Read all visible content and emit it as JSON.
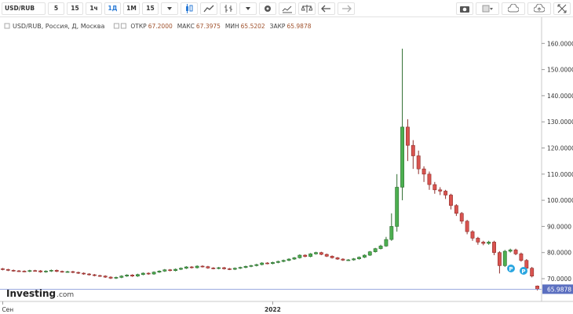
{
  "toolbar": {
    "symbol": "USD/RUB",
    "intervals": [
      "5",
      "15",
      "1ч",
      "1Д",
      "1М",
      "15"
    ],
    "active_interval": 3
  },
  "chart_data": {
    "type": "candlestick",
    "title": "USD/RUB, Россия, Д, Москва",
    "ohlc_labels": [
      {
        "name": "ОТКР",
        "text": "67.2000"
      },
      {
        "name": "МАКС",
        "text": "67.3975"
      },
      {
        "name": "МИН",
        "text": "65.5202"
      },
      {
        "name": "ЗАКР",
        "text": "65.9878"
      }
    ],
    "categories": [
      "Сен",
      null,
      null,
      null,
      null,
      null,
      null,
      null,
      null,
      null,
      null,
      null,
      null,
      null,
      null,
      null,
      null,
      null,
      null,
      null,
      null,
      null,
      null,
      null,
      null,
      null,
      null,
      null,
      null,
      null,
      null,
      null,
      null,
      null,
      null,
      null,
      null,
      null,
      null,
      null,
      null,
      null,
      null,
      null,
      null,
      null,
      null,
      null,
      null,
      null,
      "2022",
      null,
      null,
      null,
      null,
      null,
      null,
      null,
      null,
      null,
      null,
      null,
      null,
      null,
      null,
      null,
      null,
      null,
      null,
      null,
      null,
      null,
      null,
      null,
      null,
      null,
      null,
      null,
      null,
      null,
      null,
      null,
      null,
      null,
      null,
      null,
      null,
      null,
      null,
      null,
      null,
      null,
      null,
      null,
      null,
      null,
      null,
      null,
      null,
      null
    ],
    "open": [
      73.8,
      73.5,
      73.2,
      73.0,
      72.9,
      72.8,
      73.1,
      73.0,
      72.6,
      72.9,
      73.2,
      72.8,
      72.6,
      72.7,
      72.4,
      72.1,
      71.8,
      71.5,
      71.2,
      71.0,
      70.6,
      70.2,
      70.5,
      71.0,
      71.4,
      71.0,
      71.6,
      72.1,
      71.8,
      72.5,
      72.9,
      73.4,
      73.1,
      73.6,
      74.0,
      74.5,
      74.2,
      74.8,
      74.6,
      74.1,
      73.9,
      74.2,
      73.8,
      73.6,
      74.0,
      74.3,
      74.7,
      75.0,
      75.4,
      76.0,
      75.8,
      76.2,
      76.6,
      77.0,
      77.5,
      78.0,
      79.0,
      78.5,
      79.5,
      80.0,
      79.3,
      78.6,
      78.0,
      77.5,
      77.1,
      77.2,
      77.6,
      78.2,
      79.0,
      80.3,
      81.5,
      82.5,
      85.0,
      90.0,
      105.0,
      128.0,
      121.0,
      117.0,
      112.0,
      110.0,
      106.0,
      104.0,
      103.5,
      102.0,
      98.0,
      95.0,
      92.0,
      88.0,
      85.5,
      84.0,
      83.5,
      84.0,
      80.0,
      75.0,
      80.5,
      81.0,
      79.5,
      77.0,
      74.0,
      67.2
    ],
    "high": [
      74.1,
      73.8,
      73.5,
      73.3,
      73.2,
      73.4,
      73.4,
      73.3,
      73.2,
      73.5,
      73.5,
      73.1,
      73.0,
      73.0,
      72.7,
      72.4,
      72.1,
      71.8,
      71.5,
      71.3,
      70.9,
      70.8,
      71.3,
      71.7,
      71.7,
      71.9,
      72.4,
      72.4,
      72.8,
      73.2,
      73.7,
      73.7,
      73.9,
      74.3,
      74.8,
      74.8,
      75.1,
      75.1,
      74.9,
      74.4,
      74.5,
      74.5,
      74.1,
      74.3,
      74.6,
      75.0,
      75.3,
      75.7,
      76.3,
      76.3,
      76.5,
      76.9,
      77.3,
      77.8,
      78.3,
      79.3,
      79.3,
      79.8,
      80.3,
      80.3,
      79.6,
      78.9,
      78.3,
      77.8,
      77.5,
      77.9,
      78.5,
      79.3,
      80.6,
      81.8,
      83.0,
      86.0,
      95.0,
      110.0,
      158.0,
      131.0,
      123.0,
      119.0,
      113.0,
      111.0,
      107.0,
      105.0,
      104.0,
      102.5,
      98.5,
      95.5,
      92.5,
      88.5,
      86.0,
      84.5,
      84.5,
      84.5,
      80.5,
      81.0,
      81.5,
      81.5,
      80.0,
      77.5,
      74.5,
      67.3975
    ],
    "low": [
      73.2,
      72.9,
      72.7,
      72.6,
      72.5,
      72.5,
      72.7,
      72.3,
      72.3,
      72.6,
      72.5,
      72.3,
      72.3,
      72.1,
      71.8,
      71.5,
      71.2,
      70.9,
      70.7,
      70.3,
      69.9,
      69.9,
      70.2,
      70.7,
      70.7,
      70.7,
      71.3,
      71.5,
      71.5,
      72.2,
      72.6,
      72.8,
      72.8,
      73.3,
      73.7,
      73.9,
      73.9,
      74.3,
      73.8,
      73.6,
      73.6,
      73.5,
      73.3,
      73.3,
      73.7,
      74.0,
      74.4,
      74.7,
      75.1,
      75.5,
      75.5,
      75.9,
      76.3,
      76.7,
      77.2,
      77.7,
      78.2,
      78.2,
      79.2,
      79.0,
      78.3,
      77.7,
      77.2,
      76.8,
      76.8,
      76.9,
      77.3,
      77.9,
      78.7,
      80.0,
      81.2,
      82.2,
      84.5,
      88.0,
      100.0,
      115.0,
      112.0,
      110.0,
      107.0,
      104.0,
      102.5,
      102.0,
      100.5,
      96.5,
      94.0,
      91.0,
      87.0,
      84.5,
      83.0,
      82.8,
      83.0,
      79.0,
      72.0,
      74.5,
      80.0,
      79.0,
      76.5,
      73.5,
      70.5,
      65.5202
    ],
    "close": [
      73.5,
      73.2,
      73.0,
      72.9,
      72.8,
      73.1,
      73.0,
      72.6,
      72.9,
      73.2,
      72.8,
      72.6,
      72.7,
      72.4,
      72.1,
      71.8,
      71.5,
      71.2,
      71.0,
      70.6,
      70.2,
      70.5,
      71.0,
      71.4,
      71.0,
      71.6,
      72.1,
      71.8,
      72.5,
      72.9,
      73.4,
      73.1,
      73.6,
      74.0,
      74.5,
      74.2,
      74.8,
      74.6,
      74.1,
      73.9,
      74.2,
      73.8,
      73.6,
      74.0,
      74.3,
      74.7,
      75.0,
      75.4,
      76.0,
      75.8,
      76.2,
      76.6,
      77.0,
      77.5,
      78.0,
      79.0,
      78.5,
      79.5,
      80.0,
      79.3,
      78.6,
      78.0,
      77.5,
      77.1,
      77.2,
      77.6,
      78.2,
      79.0,
      80.3,
      81.5,
      82.5,
      85.0,
      90.0,
      105.0,
      128.0,
      121.0,
      117.0,
      112.0,
      110.0,
      106.0,
      104.0,
      103.5,
      102.0,
      98.0,
      95.0,
      92.0,
      88.0,
      85.5,
      84.0,
      83.5,
      84.0,
      80.0,
      75.0,
      80.5,
      81.0,
      79.5,
      77.0,
      74.0,
      71.0,
      65.9878
    ],
    "up_color": "#4caf50",
    "up_border": "#2f6d31",
    "down_color": "#d9534f",
    "down_border": "#8e2e2b",
    "ylim": [
      61.6,
      170
    ],
    "yticks": [
      {
        "value": 70,
        "label": "70.0000"
      },
      {
        "value": 80,
        "label": "80.0000"
      },
      {
        "value": 90,
        "label": "90.0000"
      },
      {
        "value": 100,
        "label": "100.0000"
      },
      {
        "value": 110,
        "label": "110.0000"
      },
      {
        "value": 120,
        "label": "120.0000"
      },
      {
        "value": 130,
        "label": "130.0000"
      },
      {
        "value": 140,
        "label": "140.0000"
      },
      {
        "value": 150,
        "label": "150.0000"
      },
      {
        "value": 160,
        "label": "160.0000"
      }
    ],
    "grid": false,
    "last_price_label": "65.9878",
    "annotations": [
      "P",
      "P"
    ],
    "brand": {
      "name": "Investing",
      "suffix": ".com"
    }
  }
}
